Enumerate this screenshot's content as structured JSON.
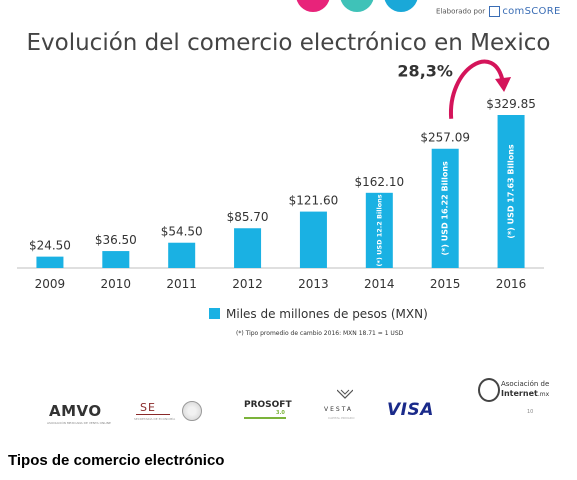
{
  "header": {
    "brand_prefix": "Elaborado por",
    "brand_name": "comSCORE",
    "dot_colors": [
      "#e8237a",
      "#3fc2b8",
      "#1aa8d8"
    ]
  },
  "chart_data": {
    "type": "bar",
    "title": "Evolución del comercio electrónico en Mexico",
    "categories": [
      "2009",
      "2010",
      "2011",
      "2012",
      "2013",
      "2014",
      "2015",
      "2016"
    ],
    "values": [
      24.5,
      36.5,
      54.5,
      85.7,
      121.6,
      162.1,
      257.09,
      329.85
    ],
    "value_labels": [
      "$24.50",
      "$36.50",
      "$54.50",
      "$85.70",
      "$121.60",
      "$162.10",
      "$257.09",
      "$329.85"
    ],
    "bar_annotations": [
      "",
      "",
      "",
      "",
      "",
      "(*) USD 12.2 Billons",
      "(*) USD 16.22 Billons",
      "(*) USD 17.63 Billons"
    ],
    "series": [
      {
        "name": "Miles de millones de pesos (MXN)",
        "values": [
          24.5,
          36.5,
          54.5,
          85.7,
          121.6,
          162.1,
          257.09,
          329.85
        ]
      }
    ],
    "growth_label": "28,3%",
    "growth_from": "2015",
    "growth_to": "2016",
    "ylim": [
      0,
      329.85
    ],
    "grid": false,
    "legend_position": "bottom",
    "bar_color": "#1ab1e3",
    "accent_color": "#d4145a",
    "footnote": "(*) Tipo promedio de cambio 2016: MXN 18.71 = 1 USD"
  },
  "logos": {
    "amvo": "AMVO",
    "amvo_sub": "ASOCIACIÓN MEXICANA DE VENTA ONLINE",
    "se": "SE",
    "se_sub": "SECRETARÍA DE ECONOMÍA",
    "prosoft": "PROSOFT",
    "prosoft_version": "3.0",
    "vesta": "VESTA",
    "vesta_sub": "CAPITAL PRIVADO",
    "visa": "VISA",
    "aim_line1": "Asociación de",
    "aim_line2": "Internet",
    "aim_suffix": ".mx"
  },
  "page_number": "10",
  "section_heading": "Tipos de comercio electrónico"
}
